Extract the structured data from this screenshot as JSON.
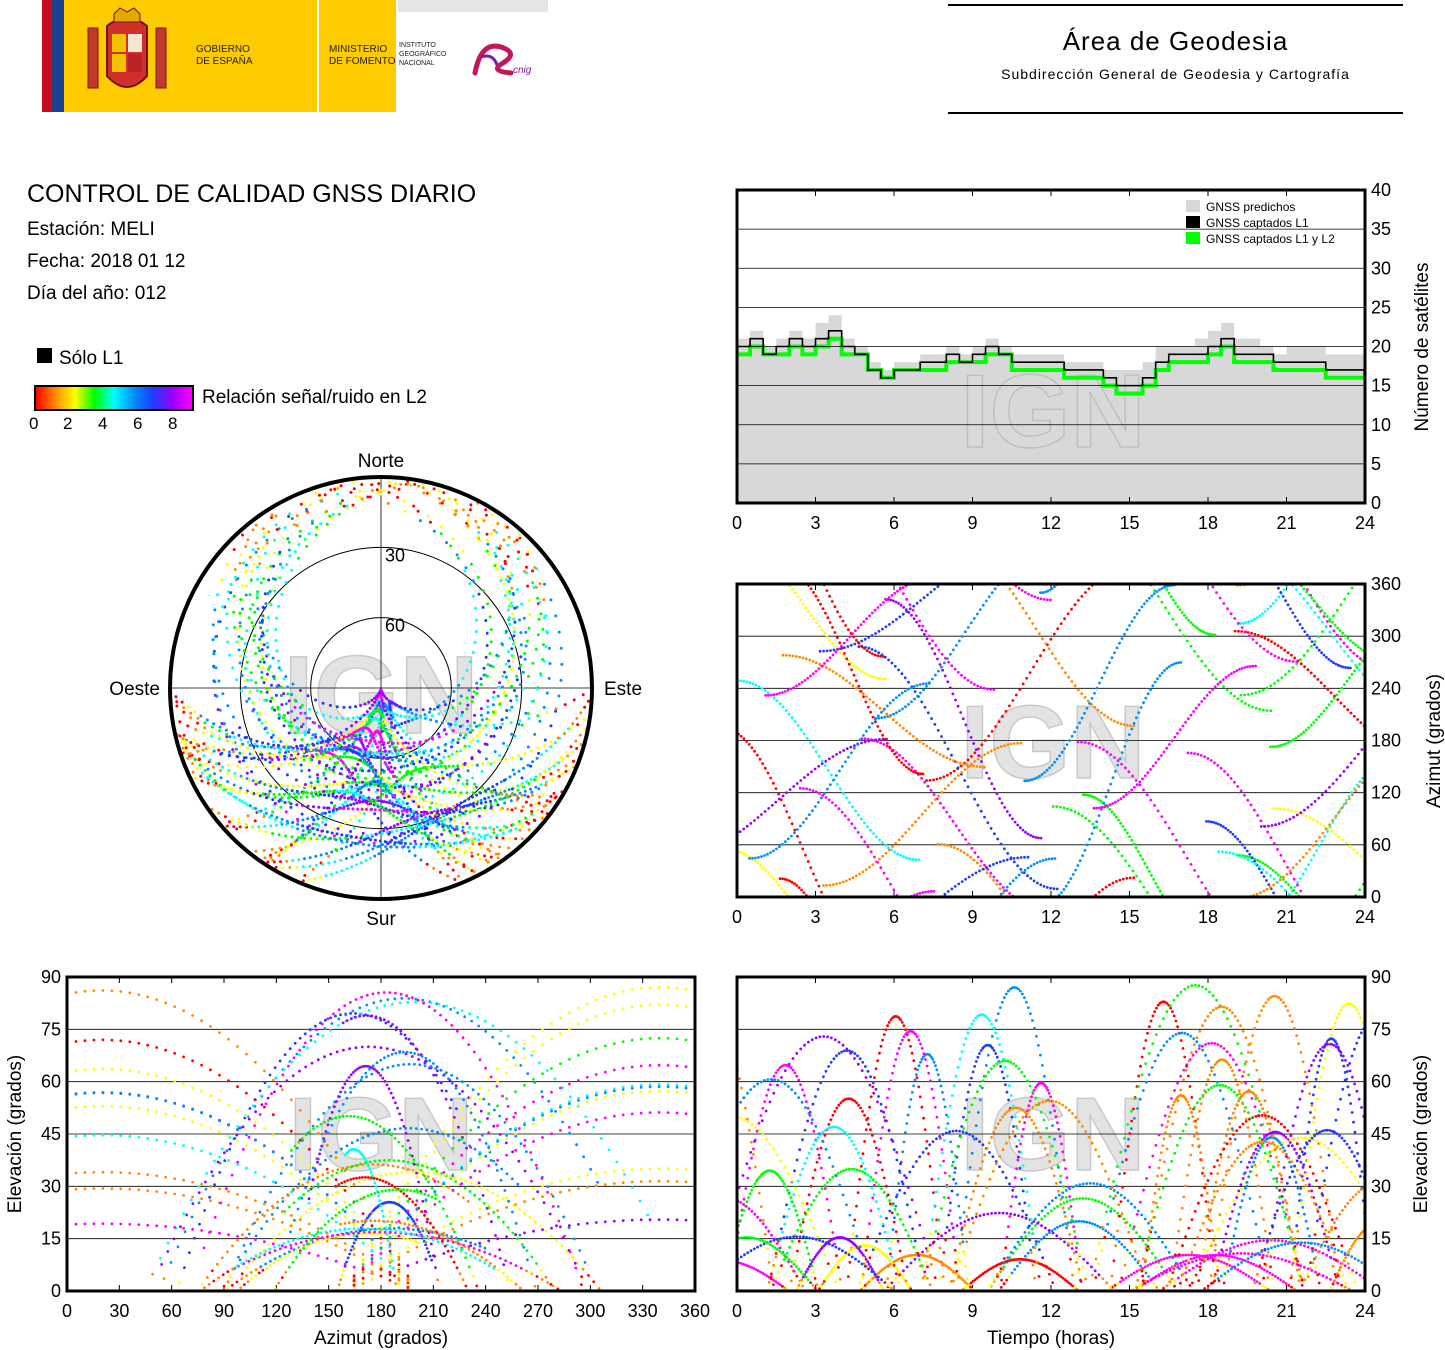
{
  "header": {
    "gov_line1": "GOBIERNO",
    "gov_line2": "DE ESPAÑA",
    "min_line1": "MINISTERIO",
    "min_line2": "DE FOMENTO",
    "inst_line1": "INSTITUTO",
    "inst_line2": "GEOGRÁFICO",
    "inst_line3": "NACIONAL",
    "cnig": "cnig",
    "area_title": "Área de Geodesia",
    "area_subtitle": "Subdirección General de Geodesia y Cartografía"
  },
  "report": {
    "title": "CONTROL DE CALIDAD GNSS DIARIO",
    "station": "Estación: MELI",
    "date": "Fecha: 2018 01 12",
    "doy": "Día del año: 012"
  },
  "legend": {
    "only_l1": "Sólo L1",
    "snr_label": "Relación señal/ruido en L2",
    "snr_ticks": [
      "0",
      "2",
      "4",
      "6",
      "8"
    ],
    "colors": [
      "#ff0000",
      "#ff8c00",
      "#ffff00",
      "#00ff00",
      "#00ffff",
      "#0090ff",
      "#1e3cff",
      "#9900ff",
      "#ff00ff"
    ]
  },
  "watermark": "IGN",
  "chart_data": [
    {
      "type": "area",
      "id": "satellite_count",
      "ylabel": "Número de satélites",
      "xlim": [
        0,
        24
      ],
      "ylim": [
        0,
        40
      ],
      "xticks": [
        "0",
        "3",
        "6",
        "9",
        "12",
        "15",
        "18",
        "21",
        "24"
      ],
      "yticks": [
        "0",
        "5",
        "10",
        "15",
        "20",
        "25",
        "30",
        "35",
        "40"
      ],
      "grid": true,
      "legend_position": "top-right",
      "series": [
        {
          "name": "GNSS predichos",
          "color": "#d8d8d8",
          "x": [
            0,
            0.5,
            1,
            1.5,
            2,
            2.5,
            3,
            3.5,
            4,
            4.5,
            5,
            5.5,
            6,
            6.5,
            7,
            7.5,
            8,
            8.5,
            9,
            9.5,
            10,
            10.5,
            11,
            11.5,
            12,
            12.5,
            13,
            13.5,
            14,
            14.5,
            15,
            15.5,
            16,
            16.5,
            17,
            17.5,
            18,
            18.5,
            19,
            19.5,
            20,
            20.5,
            21,
            21.5,
            22,
            22.5,
            23,
            23.5,
            24
          ],
          "values": [
            21,
            22,
            20,
            21,
            22,
            21,
            23,
            24,
            21,
            20,
            18,
            17,
            18,
            18,
            19,
            19,
            20,
            19,
            20,
            21,
            20,
            19,
            19,
            19,
            19,
            18,
            18,
            18,
            17,
            17,
            17,
            18,
            20,
            20,
            20,
            21,
            22,
            23,
            21,
            21,
            20,
            19,
            20,
            20,
            20,
            19,
            19,
            19,
            20
          ]
        },
        {
          "name": "GNSS captados L1",
          "color": "#000000",
          "x": [
            0,
            0.5,
            1,
            1.5,
            2,
            2.5,
            3,
            3.5,
            4,
            4.5,
            5,
            5.5,
            6,
            6.5,
            7,
            7.5,
            8,
            8.5,
            9,
            9.5,
            10,
            10.5,
            11,
            11.5,
            12,
            12.5,
            13,
            13.5,
            14,
            14.5,
            15,
            15.5,
            16,
            16.5,
            17,
            17.5,
            18,
            18.5,
            19,
            19.5,
            20,
            20.5,
            21,
            21.5,
            22,
            22.5,
            23,
            23.5,
            24
          ],
          "values": [
            20,
            21,
            19,
            20,
            21,
            20,
            21,
            22,
            20,
            19,
            17,
            16,
            17,
            17,
            18,
            18,
            19,
            18,
            19,
            20,
            19,
            18,
            18,
            18,
            18,
            17,
            17,
            17,
            16,
            15,
            15,
            16,
            18,
            19,
            19,
            19,
            20,
            21,
            19,
            19,
            19,
            18,
            18,
            18,
            18,
            17,
            17,
            17,
            18
          ]
        },
        {
          "name": "GNSS captados L1 y L2",
          "color": "#00ff00",
          "x": [
            0,
            0.5,
            1,
            1.5,
            2,
            2.5,
            3,
            3.5,
            4,
            4.5,
            5,
            5.5,
            6,
            6.5,
            7,
            7.5,
            8,
            8.5,
            9,
            9.5,
            10,
            10.5,
            11,
            11.5,
            12,
            12.5,
            13,
            13.5,
            14,
            14.5,
            15,
            15.5,
            16,
            16.5,
            17,
            17.5,
            18,
            18.5,
            19,
            19.5,
            20,
            20.5,
            21,
            21.5,
            22,
            22.5,
            23,
            23.5,
            24
          ],
          "values": [
            19,
            20,
            19,
            19,
            20,
            19,
            20,
            21,
            19,
            19,
            17,
            16,
            17,
            17,
            17,
            17,
            18,
            18,
            18,
            19,
            19,
            17,
            17,
            17,
            17,
            16,
            16,
            16,
            15,
            14,
            14,
            15,
            17,
            18,
            18,
            18,
            19,
            20,
            18,
            18,
            18,
            17,
            17,
            17,
            17,
            16,
            16,
            16,
            17
          ]
        }
      ]
    },
    {
      "type": "scatter",
      "id": "skyplot",
      "labels": {
        "north": "Norte",
        "south": "Sur",
        "east": "Este",
        "west": "Oeste"
      },
      "rings": [
        "30",
        "60"
      ],
      "note_colour": "SNR L2 colour scale 0–8"
    },
    {
      "type": "scatter",
      "id": "azimuth_vs_time",
      "ylabel": "Azimut (grados)",
      "xlim": [
        0,
        24
      ],
      "ylim": [
        0,
        360
      ],
      "xticks": [
        "0",
        "3",
        "6",
        "9",
        "12",
        "15",
        "18",
        "21",
        "24"
      ],
      "yticks": [
        "0",
        "60",
        "120",
        "180",
        "240",
        "300",
        "360"
      ],
      "grid": true
    },
    {
      "type": "scatter",
      "id": "elevation_vs_azimuth",
      "xlabel": "Azimut (grados)",
      "ylabel": "Elevación (grados)",
      "xlim": [
        0,
        360
      ],
      "ylim": [
        0,
        90
      ],
      "xticks": [
        "0",
        "30",
        "60",
        "90",
        "120",
        "150",
        "180",
        "210",
        "240",
        "270",
        "300",
        "330",
        "360"
      ],
      "yticks": [
        "0",
        "15",
        "30",
        "45",
        "60",
        "75",
        "90"
      ],
      "grid": true
    },
    {
      "type": "scatter",
      "id": "elevation_vs_time",
      "xlabel": "Tiempo (horas)",
      "ylabel": "Elevación (grados)",
      "xlim": [
        0,
        24
      ],
      "ylim": [
        0,
        90
      ],
      "xticks": [
        "0",
        "3",
        "6",
        "9",
        "12",
        "15",
        "18",
        "21",
        "24"
      ],
      "yticks": [
        "0",
        "15",
        "30",
        "45",
        "60",
        "75",
        "90"
      ],
      "grid": true
    }
  ]
}
